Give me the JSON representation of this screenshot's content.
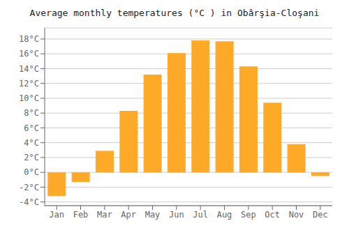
{
  "chart_data": {
    "type": "bar",
    "title": "Average monthly temperatures (°C ) in Obârşia-Cloşani",
    "categories": [
      "Jan",
      "Feb",
      "Mar",
      "Apr",
      "May",
      "Jun",
      "Jul",
      "Aug",
      "Sep",
      "Oct",
      "Nov",
      "Dec"
    ],
    "values": [
      -3.2,
      -1.3,
      2.9,
      8.3,
      13.2,
      16.1,
      17.8,
      17.7,
      14.3,
      9.4,
      3.8,
      -0.5
    ],
    "color": "#FFA928",
    "ylim": [
      -4.5,
      19.5
    ],
    "yticks": [
      {
        "value": -4,
        "label": "-4°C"
      },
      {
        "value": -2,
        "label": "-2°C"
      },
      {
        "value": 0,
        "label": "0°C"
      },
      {
        "value": 2,
        "label": "2°C"
      },
      {
        "value": 4,
        "label": "4°C"
      },
      {
        "value": 6,
        "label": "6°C"
      },
      {
        "value": 8,
        "label": "8°C"
      },
      {
        "value": 10,
        "label": "10°C"
      },
      {
        "value": 12,
        "label": "12°C"
      },
      {
        "value": 14,
        "label": "14°C"
      },
      {
        "value": 16,
        "label": "16°C"
      },
      {
        "value": 18,
        "label": "18°C"
      }
    ],
    "grid": true
  }
}
